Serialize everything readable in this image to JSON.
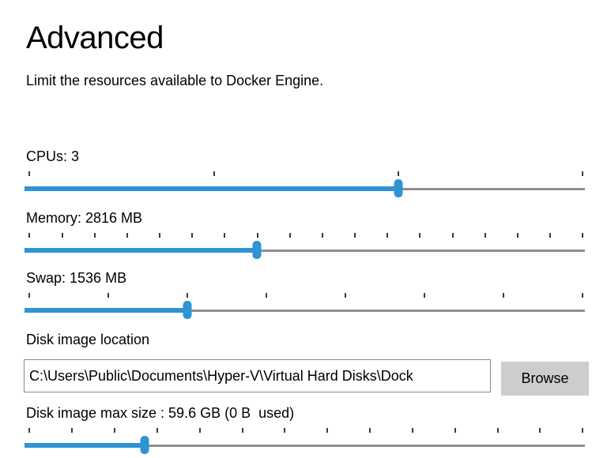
{
  "page": {
    "title": "Advanced",
    "description": "Limit the resources available to Docker Engine."
  },
  "sliders": [
    {
      "id": "cpus",
      "label": "CPUs: 3",
      "tick_count": 4,
      "fill_percent": 66.7
    },
    {
      "id": "memory",
      "label": "Memory: 2816 MB",
      "tick_count": 18,
      "fill_percent": 41.5
    },
    {
      "id": "swap",
      "label": "Swap: 1536 MB",
      "tick_count": 8,
      "fill_percent": 29.0
    },
    {
      "id": "disk-image-max-size",
      "label": "Disk image max size : 59.6 GB (0 B  used)",
      "tick_count": 14,
      "fill_percent": 21.5
    }
  ],
  "disk_location": {
    "label": "Disk image location",
    "value": "C:\\Users\\Public\\Documents\\Hyper-V\\Virtual Hard Disks\\Dock",
    "browse_label": "Browse"
  },
  "colors": {
    "accent": "#2e94d2",
    "track": "#8f8f8f",
    "tick": "#3c3c3c"
  }
}
